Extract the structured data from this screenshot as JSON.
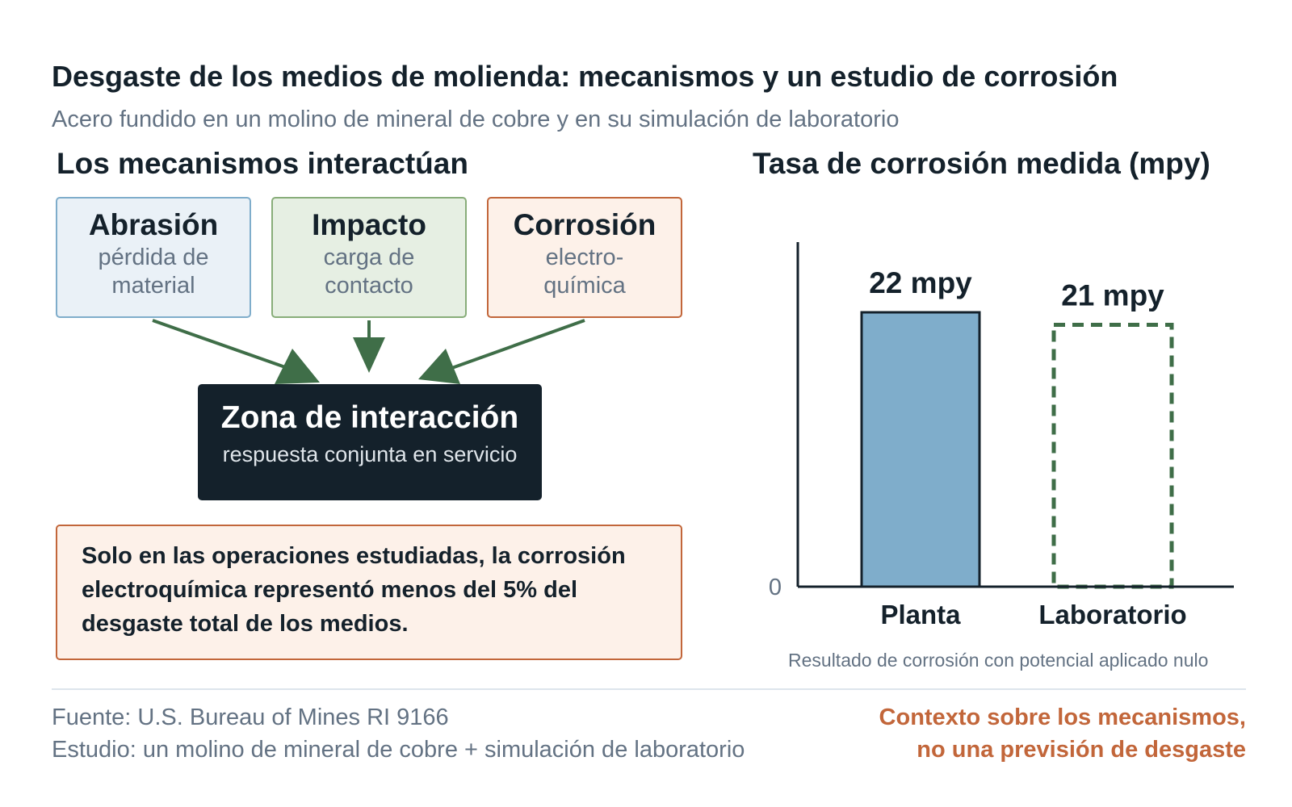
{
  "header": {
    "title": "Desgaste de los medios de molienda: mecanismos y un estudio de corrosión",
    "subtitle": "Acero fundido en un molino de mineral de cobre y en su simulación de laboratorio"
  },
  "mechanisms": {
    "heading": "Los mecanismos interactúan",
    "items": [
      {
        "name": "Abrasión",
        "desc": "pérdida de material"
      },
      {
        "name": "Impacto",
        "desc": "carga de contacto"
      },
      {
        "name": "Corrosión",
        "desc": "electro-química"
      }
    ],
    "zone": {
      "title": "Zona de interacción",
      "subtitle": "respuesta conjunta en servicio"
    },
    "note": "Solo en las operaciones estudiadas, la corrosión electroquímica representó menos del 5% del desgaste total de los medios.",
    "colors": {
      "abrasion": "#7fadcb",
      "impact": "#88ad79",
      "corrosion": "#c2663a",
      "arrow": "#3f6e48",
      "zone": "#14212b"
    }
  },
  "chart_data": {
    "type": "bar",
    "title": "Tasa de corrosión medida (mpy)",
    "categories": [
      "Planta",
      "Laboratorio"
    ],
    "values": [
      22,
      21
    ],
    "data_labels": [
      "22 mpy",
      "21 mpy"
    ],
    "ytick_labels": [
      "0"
    ],
    "ylim": [
      0,
      22
    ],
    "grid": false,
    "legend": "none",
    "note": "Resultado de corrosión con potencial aplicado nulo",
    "styles": [
      {
        "fill": "#7fadcb",
        "stroke": "#14212b",
        "dashed": false
      },
      {
        "fill": "none",
        "stroke": "#3f6e48",
        "dashed": true
      }
    ]
  },
  "footer": {
    "source": "Fuente: U.S. Bureau of Mines RI 9166",
    "study": "Estudio: un molino de mineral de cobre + simulación de laboratorio",
    "caveat_line1": "Contexto sobre los mecanismos,",
    "caveat_line2": "no una previsión de desgaste"
  }
}
